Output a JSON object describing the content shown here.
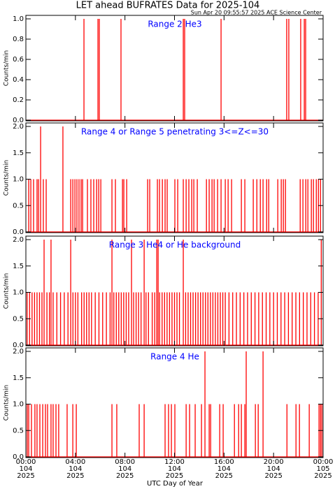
{
  "title": "LET ahead BUFRATES Data for 2025-104",
  "timestamp": "Sun Apr 20 09:55:57 2025 ACE Science Center",
  "x_axis": {
    "label": "UTC Day of Year",
    "xlim": [
      0,
      24
    ],
    "xticks": [
      {
        "value": 0,
        "label": "00:00"
      },
      {
        "value": 4,
        "label": "04:00"
      },
      {
        "value": 8,
        "label": "08:00"
      },
      {
        "value": 12,
        "label": "12:00"
      },
      {
        "value": 16,
        "label": "16:00"
      },
      {
        "value": 20,
        "label": "20:00"
      },
      {
        "value": 24,
        "label": "00:00"
      }
    ],
    "day_labels": [
      "104",
      "104",
      "104",
      "104",
      "104",
      "104",
      "105"
    ],
    "year_labels": [
      "2025",
      "2025",
      "2025",
      "2025",
      "2025",
      "2025",
      "2025"
    ]
  },
  "chart_data": [
    {
      "type": "line",
      "subtitle": "Range 2  He3",
      "ylabel": "Counts/min",
      "color": "#ff0000",
      "ylim": [
        0,
        1
      ],
      "yticks": [
        {
          "value": 0,
          "label": "0.0"
        },
        0.2,
        0.4,
        0.6,
        0.8,
        {
          "value": 1,
          "label": "1.0"
        }
      ],
      "x": [
        4.69,
        5.82,
        5.93,
        7.68,
        12.71,
        12.82,
        15.76,
        21.06,
        21.23,
        22.19,
        22.48,
        22.59
      ],
      "values": [
        1,
        1,
        1,
        1,
        1,
        1,
        1,
        1,
        1,
        1,
        1,
        1
      ]
    },
    {
      "type": "line",
      "subtitle": "Range 4 or Range 5 penetrating 3<=Z<=30",
      "ylabel": "Counts/min",
      "color": "#ff0000",
      "ylim": [
        0,
        2
      ],
      "yticks": [
        {
          "value": 0,
          "label": "0.0"
        },
        0.5,
        {
          "value": 1,
          "label": "1.0"
        },
        1.5,
        {
          "value": 2,
          "label": "2.0"
        }
      ],
      "x": [
        0.23,
        0.4,
        0.62,
        0.9,
        1.02,
        1.19,
        1.41,
        1.64,
        2.99,
        3.62,
        3.79,
        3.96,
        4.12,
        4.29,
        4.46,
        4.58,
        4.97,
        5.25,
        5.48,
        5.71,
        5.88,
        6.05,
        6.95,
        7.23,
        7.8,
        7.91,
        8.14,
        9.83,
        10.0,
        10.62,
        10.79,
        11.02,
        11.24,
        11.41,
        12.03,
        12.26,
        12.71,
        12.94,
        13.16,
        13.39,
        13.56,
        13.84,
        14.58,
        14.8,
        15.03,
        15.2,
        15.48,
        15.76,
        16.1,
        16.33,
        16.61,
        17.4,
        17.68,
        18.36,
        18.65,
        18.93,
        19.15,
        19.44,
        19.61,
        20.34,
        20.62,
        20.79,
        20.96,
        22.15,
        22.37,
        22.6,
        22.77,
        23.05,
        23.22,
        23.45,
        23.62,
        23.79
      ],
      "values": [
        1,
        1,
        1,
        1,
        1,
        2,
        1,
        1,
        2,
        1,
        1,
        1,
        1,
        1,
        1,
        1,
        1,
        1,
        1,
        1,
        1,
        1,
        1,
        1,
        1,
        1,
        1,
        1,
        1,
        1,
        1,
        1,
        1,
        1,
        1,
        1,
        1,
        1,
        1,
        1,
        1,
        1,
        1,
        1,
        1,
        1,
        1,
        1,
        1,
        1,
        1,
        1,
        1,
        1,
        1,
        1,
        1,
        1,
        1,
        1,
        1,
        1,
        1,
        1,
        1,
        1,
        1,
        1,
        1,
        1,
        1,
        1
      ]
    },
    {
      "type": "line",
      "subtitle": "Range 3 He4 or He background",
      "ylabel": "Counts/min",
      "color": "#ff0000",
      "ylim": [
        0,
        2
      ],
      "yticks": [
        {
          "value": 0,
          "label": "0.0"
        },
        0.5,
        {
          "value": 1,
          "label": "1.0"
        },
        1.5,
        {
          "value": 2,
          "label": "2.0"
        }
      ],
      "x": [
        0.1,
        0.3,
        0.5,
        0.7,
        0.9,
        1.1,
        1.3,
        1.47,
        1.7,
        1.9,
        2.03,
        2.2,
        2.5,
        2.8,
        3.1,
        3.4,
        3.62,
        3.8,
        4.0,
        4.2,
        4.5,
        4.7,
        4.9,
        5.1,
        5.3,
        5.6,
        5.9,
        6.2,
        6.5,
        6.8,
        6.95,
        7.1,
        7.3,
        7.5,
        7.7,
        7.9,
        8.1,
        8.3,
        8.53,
        8.7,
        8.9,
        9.1,
        9.3,
        9.55,
        9.7,
        9.9,
        10.2,
        10.4,
        10.57,
        10.68,
        10.8,
        11.0,
        11.2,
        11.4,
        11.6,
        11.8,
        12.0,
        12.2,
        12.4,
        12.71,
        12.9,
        13.1,
        13.3,
        13.5,
        13.7,
        13.9,
        14.1,
        14.3,
        14.5,
        14.7,
        14.9,
        15.1,
        15.3,
        15.5,
        15.7,
        15.9,
        16.1,
        16.4,
        16.7,
        17.0,
        17.3,
        17.6,
        17.9,
        18.2,
        18.5,
        18.8,
        19.1,
        19.4,
        19.7,
        20.0,
        20.3,
        20.6,
        20.9,
        21.2,
        21.5,
        21.8,
        22.1,
        22.4,
        22.7,
        23.0,
        23.3,
        23.6,
        23.85
      ],
      "values": [
        1,
        1,
        1,
        1,
        1,
        1,
        1,
        2,
        1,
        1,
        2,
        1,
        1,
        1,
        1,
        1,
        2,
        1,
        1,
        1,
        1,
        1,
        1,
        1,
        1,
        1,
        1,
        1,
        1,
        1,
        2,
        1,
        1,
        1,
        1,
        1,
        1,
        1,
        2,
        1,
        1,
        1,
        1,
        2,
        1,
        1,
        1,
        1,
        2,
        2,
        1,
        1,
        1,
        1,
        1,
        1,
        1,
        1,
        1,
        2,
        1,
        1,
        1,
        1,
        1,
        1,
        1,
        1,
        1,
        1,
        1,
        1,
        1,
        1,
        1,
        1,
        1,
        1,
        1,
        1,
        1,
        1,
        1,
        1,
        1,
        1,
        1,
        1,
        1,
        1,
        1,
        1,
        1,
        1,
        1,
        1,
        1,
        1,
        1,
        1,
        1,
        1,
        2
      ]
    },
    {
      "type": "line",
      "subtitle": "Range 4 He",
      "ylabel": "Counts/min",
      "color": "#ff0000",
      "ylim": [
        0,
        2
      ],
      "yticks": [
        {
          "value": 0,
          "label": "0.0"
        },
        0.5,
        {
          "value": 1,
          "label": "1.0"
        },
        1.5,
        {
          "value": 2,
          "label": "2.0"
        }
      ],
      "x": [
        0.11,
        0.23,
        0.45,
        0.73,
        0.9,
        1.13,
        1.36,
        1.58,
        1.75,
        2.03,
        2.2,
        2.43,
        2.65,
        3.33,
        3.79,
        4.07,
        6.95,
        7.34,
        9.15,
        9.55,
        11.24,
        11.52,
        11.75,
        12.03,
        12.94,
        13.22,
        13.67,
        14.18,
        14.46,
        14.8,
        14.92,
        15.65,
        15.93,
        16.84,
        17.18,
        17.4,
        17.68,
        17.79,
        18.53,
        18.76,
        19.15,
        21.08,
        21.81,
        22.09,
        22.88,
        23.67,
        23.79,
        23.9
      ],
      "values": [
        1,
        1,
        1,
        1,
        1,
        1,
        1,
        1,
        1,
        1,
        1,
        1,
        1,
        1,
        1,
        1,
        1,
        1,
        1,
        1,
        1,
        1,
        1,
        1,
        1,
        1,
        1,
        1,
        2,
        1,
        1,
        1,
        1,
        1,
        1,
        1,
        1,
        2,
        1,
        1,
        2,
        1,
        1,
        1,
        1,
        1,
        1,
        1
      ]
    }
  ]
}
